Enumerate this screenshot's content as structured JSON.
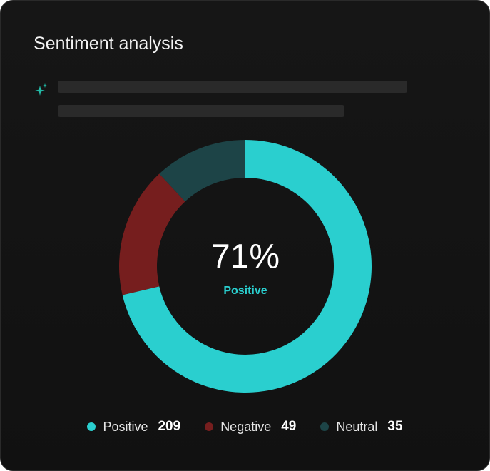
{
  "chart_data": {
    "type": "donut",
    "title": "Sentiment analysis",
    "categories": [
      "Positive",
      "Negative",
      "Neutral"
    ],
    "values": [
      209,
      49,
      35
    ],
    "colors": [
      "#2acfcf",
      "#761e1e",
      "#1d4447"
    ],
    "center_label": "71%",
    "center_caption": "Positive"
  }
}
